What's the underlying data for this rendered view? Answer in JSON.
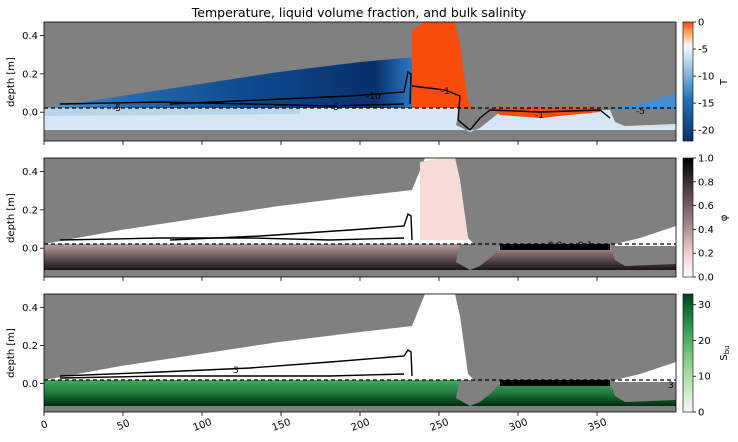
{
  "figure": {
    "title": "Temperature, liquid volume fraction, and bulk salinity"
  },
  "chart_data": [
    {
      "type": "heatmap",
      "panel": "temperature",
      "ylabel": "depth [m]",
      "xlim": [
        0,
        400
      ],
      "ylim": [
        -0.15,
        0.47
      ],
      "yticks": [
        0.0,
        0.2,
        0.4
      ],
      "xticks": [
        0,
        50,
        100,
        150,
        200,
        250,
        300,
        350
      ],
      "colorbar": {
        "label": "T",
        "range": [
          -22,
          0
        ],
        "ticks": [
          0,
          -5,
          -10,
          -15,
          -20
        ],
        "colormap": "blue-to-orange"
      },
      "contour_labels": [
        {
          "text": "-10",
          "x": 210,
          "y": 0.08
        },
        {
          "text": "-1",
          "x": 256,
          "y": 0.11
        },
        {
          "text": "-1",
          "x": 312,
          "y": -0.02
        },
        {
          "text": "-5",
          "x": 25,
          "y": 0.0
        },
        {
          "text": "-5",
          "x": 185,
          "y": 0.01
        },
        {
          "text": "-5",
          "x": 380,
          "y": 0.0
        }
      ],
      "snow_surface": {
        "x": [
          0,
          50,
          100,
          150,
          200,
          230,
          233,
          240,
          250,
          258,
          263,
          268,
          272,
          360,
          380,
          400
        ],
        "y": [
          0.0,
          0.07,
          0.13,
          0.19,
          0.25,
          0.28,
          0.45,
          0.47,
          0.48,
          0.4,
          0.04,
          0.02,
          0.0,
          0.0,
          0.05,
          0.14
        ]
      },
      "ice_base": {
        "x": [
          0,
          50,
          100,
          150,
          200,
          250,
          258,
          265,
          275,
          290,
          300,
          355,
          365,
          380,
          400
        ],
        "y": [
          -0.12,
          -0.13,
          -0.14,
          -0.15,
          -0.15,
          -0.15,
          -0.12,
          -0.07,
          -0.08,
          -0.06,
          -0.01,
          -0.01,
          -0.07,
          -0.08,
          -0.08
        ]
      },
      "grid": false
    },
    {
      "type": "heatmap",
      "panel": "liquid volume fraction",
      "ylabel": "depth [m]",
      "xlim": [
        0,
        400
      ],
      "ylim": [
        -0.15,
        0.47
      ],
      "yticks": [
        0.0,
        0.2,
        0.4
      ],
      "xticks": [
        0,
        50,
        100,
        150,
        200,
        250,
        300,
        350
      ],
      "colorbar": {
        "label": "φ",
        "range": [
          0.0,
          1.0
        ],
        "ticks": [
          0.0,
          0.2,
          0.4,
          0.6,
          0.8,
          1.0
        ],
        "colormap": "white-pink-black"
      },
      "contour_labels": [
        {
          "text": "0.2",
          "x": 312,
          "y": 0.0
        },
        {
          "text": "0.1",
          "x": 330,
          "y": 0.0
        }
      ],
      "grid": false
    },
    {
      "type": "heatmap",
      "panel": "bulk salinity",
      "ylabel": "depth [m]",
      "xlim": [
        0,
        400
      ],
      "ylim": [
        -0.15,
        0.47
      ],
      "yticks": [
        0.0,
        0.2,
        0.4
      ],
      "xticks": [
        0,
        50,
        100,
        150,
        200,
        250,
        300,
        350
      ],
      "xticklabel_rotation": 20,
      "colorbar": {
        "label": "S_bu",
        "range": [
          0,
          33
        ],
        "ticks": [
          0,
          10,
          20,
          30
        ],
        "colormap": "white-to-green"
      },
      "contour_labels": [
        {
          "text": "3",
          "x": 122,
          "y": 0.06
        },
        {
          "text": "3",
          "x": 392,
          "y": 0.0
        }
      ],
      "grid": false
    }
  ]
}
